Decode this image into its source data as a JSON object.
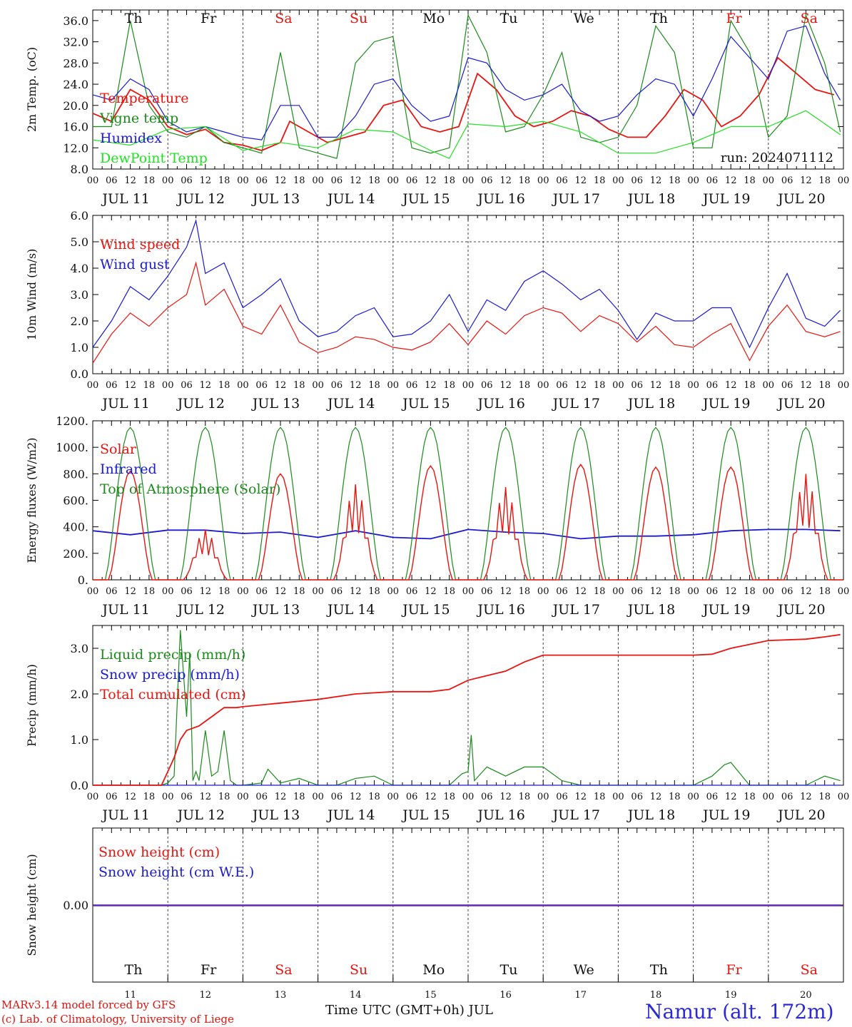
{
  "footer": {
    "credit_line1": "MARv3.14 model forced by GFS",
    "credit_line2": "(c) Lab. of Climatology, University of Liege",
    "x_title": "Time UTC (GMT+0h) JUL",
    "station": "Namur (alt. 172m)"
  },
  "colors": {
    "red": "#e8140f",
    "green": "#1a8a1a",
    "blue": "#1a1ad2",
    "lightgreen": "#22e022",
    "purple": "#7a2aa8",
    "weekend": "#e8140f",
    "weekday": "#111111"
  },
  "days": [
    "Th",
    "Fr",
    "Sa",
    "Su",
    "Mo",
    "Tu",
    "We",
    "Th",
    "Fr",
    "Sa"
  ],
  "weekend_flags": [
    false,
    false,
    true,
    true,
    false,
    false,
    false,
    false,
    true,
    true
  ],
  "dates": [
    "JUL 11",
    "JUL 12",
    "JUL 13",
    "JUL 14",
    "JUL 15",
    "JUL 16",
    "JUL 17",
    "JUL 18",
    "JUL 19",
    "JUL 20"
  ],
  "day_numbers": [
    "11",
    "12",
    "13",
    "14",
    "15",
    "16",
    "17",
    "18",
    "19",
    "20"
  ],
  "hour_labels": [
    "00",
    "06",
    "12",
    "18"
  ],
  "chart_data": [
    {
      "type": "line",
      "ylabel": "2m Temp. (oC)",
      "ylim": [
        8,
        38
      ],
      "yticks": [
        "8.0",
        "12.0",
        "16.0",
        "20.0",
        "24.0",
        "28.0",
        "32.0",
        "36.0"
      ],
      "ytick_values": [
        8,
        12,
        16,
        20,
        24,
        28,
        32,
        36
      ],
      "annotation": "run: 2024071112",
      "x_unit": "hours since JUL 11 00 UTC",
      "series": [
        {
          "name": "Temperature",
          "color": "red",
          "x": [
            0,
            6,
            12,
            15,
            18,
            24,
            30,
            36,
            42,
            48,
            54,
            60,
            63,
            69,
            75,
            81,
            87,
            93,
            99,
            105,
            111,
            117,
            123,
            129,
            135,
            141,
            147,
            153,
            159,
            165,
            171,
            177,
            183,
            189,
            195,
            201,
            207,
            213,
            219,
            225,
            231,
            237
          ],
          "y": [
            18.5,
            17,
            23,
            22,
            21,
            16,
            14.5,
            15.5,
            13,
            12.5,
            11.5,
            13,
            17,
            15,
            13,
            14,
            15,
            20,
            21,
            16,
            15,
            16,
            26,
            23,
            18,
            16,
            17,
            19,
            18,
            15.5,
            14,
            14,
            18,
            23,
            21,
            16,
            18,
            22,
            29,
            26,
            23,
            22
          ]
        },
        {
          "name": "Vigne temp",
          "color": "green",
          "x": [
            0,
            6,
            12,
            18,
            24,
            30,
            36,
            42,
            48,
            54,
            60,
            66,
            72,
            78,
            84,
            90,
            96,
            102,
            108,
            114,
            120,
            126,
            132,
            138,
            144,
            150,
            156,
            162,
            168,
            174,
            180,
            186,
            192,
            198,
            204,
            210,
            216,
            222,
            228,
            234,
            239
          ],
          "y": [
            16,
            16,
            36,
            20,
            15,
            14,
            16,
            13,
            12,
            11,
            30,
            12,
            11,
            10,
            28,
            32,
            33,
            12,
            11,
            12,
            37,
            30,
            15,
            16,
            22,
            30,
            14,
            13,
            14,
            20,
            35,
            30,
            12,
            12,
            36,
            30,
            14,
            18,
            37,
            28,
            15
          ]
        },
        {
          "name": "Humidex",
          "color": "blue",
          "x": [
            0,
            6,
            12,
            18,
            24,
            30,
            36,
            42,
            48,
            54,
            60,
            66,
            72,
            78,
            84,
            90,
            96,
            102,
            108,
            114,
            120,
            126,
            132,
            138,
            144,
            150,
            156,
            162,
            168,
            174,
            180,
            186,
            192,
            198,
            204,
            210,
            216,
            222,
            228,
            234,
            239
          ],
          "y": [
            22,
            21,
            25,
            23,
            17,
            15,
            16,
            15,
            14,
            13.5,
            20,
            20,
            14,
            14,
            18,
            24,
            25,
            20,
            17,
            18,
            29,
            28,
            23,
            21,
            22,
            24,
            19,
            17,
            18,
            22,
            25,
            24,
            18,
            25,
            33,
            29,
            25,
            34,
            35,
            26,
            21
          ]
        },
        {
          "name": "DewPoint Temp",
          "color": "lightgreen",
          "x": [
            0,
            12,
            24,
            36,
            48,
            60,
            72,
            84,
            96,
            108,
            114,
            120,
            132,
            144,
            156,
            168,
            180,
            192,
            204,
            216,
            228,
            239
          ],
          "y": [
            13.5,
            12.5,
            15.5,
            16,
            11.5,
            13,
            12,
            15.5,
            15,
            11.5,
            10,
            16.5,
            16,
            17,
            15,
            11,
            11,
            13,
            16,
            16,
            19,
            14.5
          ]
        }
      ]
    },
    {
      "type": "line",
      "ylabel": "10m Wind (m/s)",
      "ylim": [
        0,
        6
      ],
      "yticks": [
        "0.0",
        "1.0",
        "2.0",
        "3.0",
        "4.0",
        "5.0",
        "6.0"
      ],
      "ytick_values": [
        0,
        1,
        2,
        3,
        4,
        5,
        6
      ],
      "reference_line": 5,
      "x_unit": "hours since JUL 11 00 UTC",
      "series": [
        {
          "name": "Wind speed",
          "color": "red",
          "x": [
            0,
            6,
            12,
            18,
            24,
            30,
            33,
            36,
            42,
            48,
            54,
            60,
            66,
            72,
            78,
            84,
            90,
            96,
            102,
            108,
            114,
            120,
            126,
            132,
            138,
            144,
            150,
            156,
            162,
            168,
            174,
            180,
            186,
            192,
            198,
            204,
            210,
            216,
            222,
            228,
            234,
            239
          ],
          "y": [
            0.4,
            1.5,
            2.3,
            1.8,
            2.5,
            3.0,
            4.2,
            2.6,
            3.2,
            1.8,
            1.5,
            2.6,
            1.2,
            0.8,
            1.0,
            1.4,
            1.3,
            1.0,
            0.9,
            1.2,
            1.9,
            1.1,
            2.0,
            1.5,
            2.2,
            2.5,
            2.3,
            1.6,
            2.2,
            1.9,
            1.2,
            1.8,
            1.1,
            1.0,
            1.5,
            1.9,
            0.5,
            1.8,
            2.6,
            1.6,
            1.4,
            1.6
          ]
        },
        {
          "name": "Wind gust",
          "color": "blue",
          "x": [
            0,
            6,
            12,
            18,
            24,
            30,
            33,
            36,
            42,
            48,
            54,
            60,
            66,
            72,
            78,
            84,
            90,
            96,
            102,
            108,
            114,
            120,
            126,
            132,
            138,
            144,
            150,
            156,
            162,
            168,
            174,
            180,
            186,
            192,
            198,
            204,
            210,
            216,
            222,
            228,
            234,
            239
          ],
          "y": [
            1.0,
            2.0,
            3.3,
            2.8,
            3.7,
            4.8,
            5.8,
            3.8,
            4.2,
            2.5,
            3.0,
            3.6,
            2.0,
            1.4,
            1.6,
            2.2,
            2.5,
            1.4,
            1.5,
            2.0,
            3.0,
            1.6,
            2.8,
            2.4,
            3.5,
            3.9,
            3.4,
            2.8,
            3.2,
            2.4,
            1.3,
            2.3,
            2.0,
            2.0,
            2.5,
            2.5,
            1.0,
            2.5,
            3.8,
            2.1,
            1.8,
            2.4
          ]
        }
      ]
    },
    {
      "type": "line",
      "ylabel": "Energy fluxes (W/m2)",
      "ylim": [
        0,
        1200
      ],
      "yticks": [
        "0.",
        "200.",
        "400.",
        "600.",
        "800.",
        "1000.",
        "1200."
      ],
      "ytick_values": [
        0,
        200,
        400,
        600,
        800,
        1000,
        1200
      ],
      "x_unit": "hours since JUL 11 00 UTC",
      "daily_peaks": {
        "top_of_atmosphere": [
          1150,
          1150,
          1150,
          1150,
          1150,
          1150,
          1150,
          1150,
          1150,
          1150
        ],
        "solar": [
          820,
          380,
          800,
          720,
          860,
          700,
          870,
          850,
          850,
          800
        ]
      },
      "series": [
        {
          "name": "Solar",
          "color": "red",
          "daily_shape": "peak near 12 UTC"
        },
        {
          "name": "Infrared",
          "color": "blue",
          "x": [
            0,
            12,
            24,
            36,
            48,
            60,
            72,
            84,
            96,
            108,
            120,
            132,
            144,
            156,
            168,
            180,
            192,
            204,
            216,
            228,
            239
          ],
          "y": [
            370,
            340,
            375,
            375,
            350,
            360,
            320,
            370,
            320,
            310,
            380,
            360,
            350,
            310,
            330,
            330,
            340,
            370,
            380,
            380,
            370
          ]
        },
        {
          "name": "Top of Atmosphere (Solar)",
          "color": "green",
          "daily_shape": "peak near 12 UTC"
        }
      ]
    },
    {
      "type": "line",
      "ylabel": "Precip (mm/h)",
      "ylim": [
        0,
        3.5
      ],
      "yticks": [
        "0.0",
        "1.0",
        "2.0",
        "3.0"
      ],
      "ytick_values": [
        0,
        1,
        2,
        3
      ],
      "x_unit": "hours since JUL 11 00 UTC",
      "series": [
        {
          "name": "Liquid precip (mm/h)",
          "color": "green",
          "x": [
            0,
            22,
            24,
            26,
            28,
            30,
            31,
            32,
            33,
            34,
            36,
            38,
            40,
            42,
            44,
            46,
            48,
            54,
            56,
            60,
            66,
            72,
            78,
            84,
            90,
            96,
            102,
            108,
            114,
            118,
            120,
            121,
            122,
            126,
            132,
            138,
            144,
            150,
            156,
            168,
            192,
            198,
            202,
            204,
            210,
            216,
            228,
            234,
            239
          ],
          "y": [
            0,
            0,
            0.05,
            0.2,
            3.4,
            1.5,
            2.9,
            0.1,
            0.3,
            0.1,
            1.2,
            0.2,
            0.3,
            1.2,
            0.1,
            0,
            0,
            0.05,
            0.35,
            0.05,
            0.15,
            0,
            0,
            0.15,
            0.2,
            0,
            0,
            0,
            0,
            0.25,
            0.3,
            1.1,
            0.1,
            0.4,
            0.2,
            0.4,
            0.4,
            0.1,
            0,
            0,
            0,
            0.2,
            0.45,
            0.5,
            0,
            0,
            0,
            0.2,
            0.1
          ]
        },
        {
          "name": "Snow precip (mm/h)",
          "color": "blue",
          "x": [
            0,
            239
          ],
          "y": [
            0,
            0
          ]
        },
        {
          "name": "Total cumulated (cm)",
          "color": "red",
          "x": [
            0,
            22,
            26,
            28,
            30,
            34,
            36,
            38,
            42,
            46,
            48,
            60,
            72,
            84,
            96,
            108,
            114,
            120,
            126,
            132,
            138,
            144,
            150,
            162,
            168,
            180,
            192,
            198,
            204,
            216,
            228,
            234,
            239
          ],
          "y": [
            0,
            0,
            0.6,
            1.0,
            1.2,
            1.3,
            1.4,
            1.5,
            1.7,
            1.7,
            1.72,
            1.8,
            1.88,
            2.0,
            2.05,
            2.05,
            2.1,
            2.3,
            2.4,
            2.5,
            2.7,
            2.85,
            2.85,
            2.85,
            2.85,
            2.85,
            2.85,
            2.87,
            3.0,
            3.17,
            3.2,
            3.25,
            3.3
          ]
        }
      ]
    },
    {
      "type": "line",
      "ylabel": "Snow height (cm)",
      "yticks": [
        "0.00"
      ],
      "ytick_values": [
        0
      ],
      "x_unit": "hours since JUL 11 00 UTC",
      "series": [
        {
          "name": "Snow height (cm)",
          "color": "red",
          "x": [
            0,
            239
          ],
          "y": [
            0,
            0
          ]
        },
        {
          "name": "Snow height (cm W.E.)",
          "color": "blue",
          "x": [
            0,
            239
          ],
          "y": [
            0,
            0
          ]
        }
      ]
    }
  ]
}
